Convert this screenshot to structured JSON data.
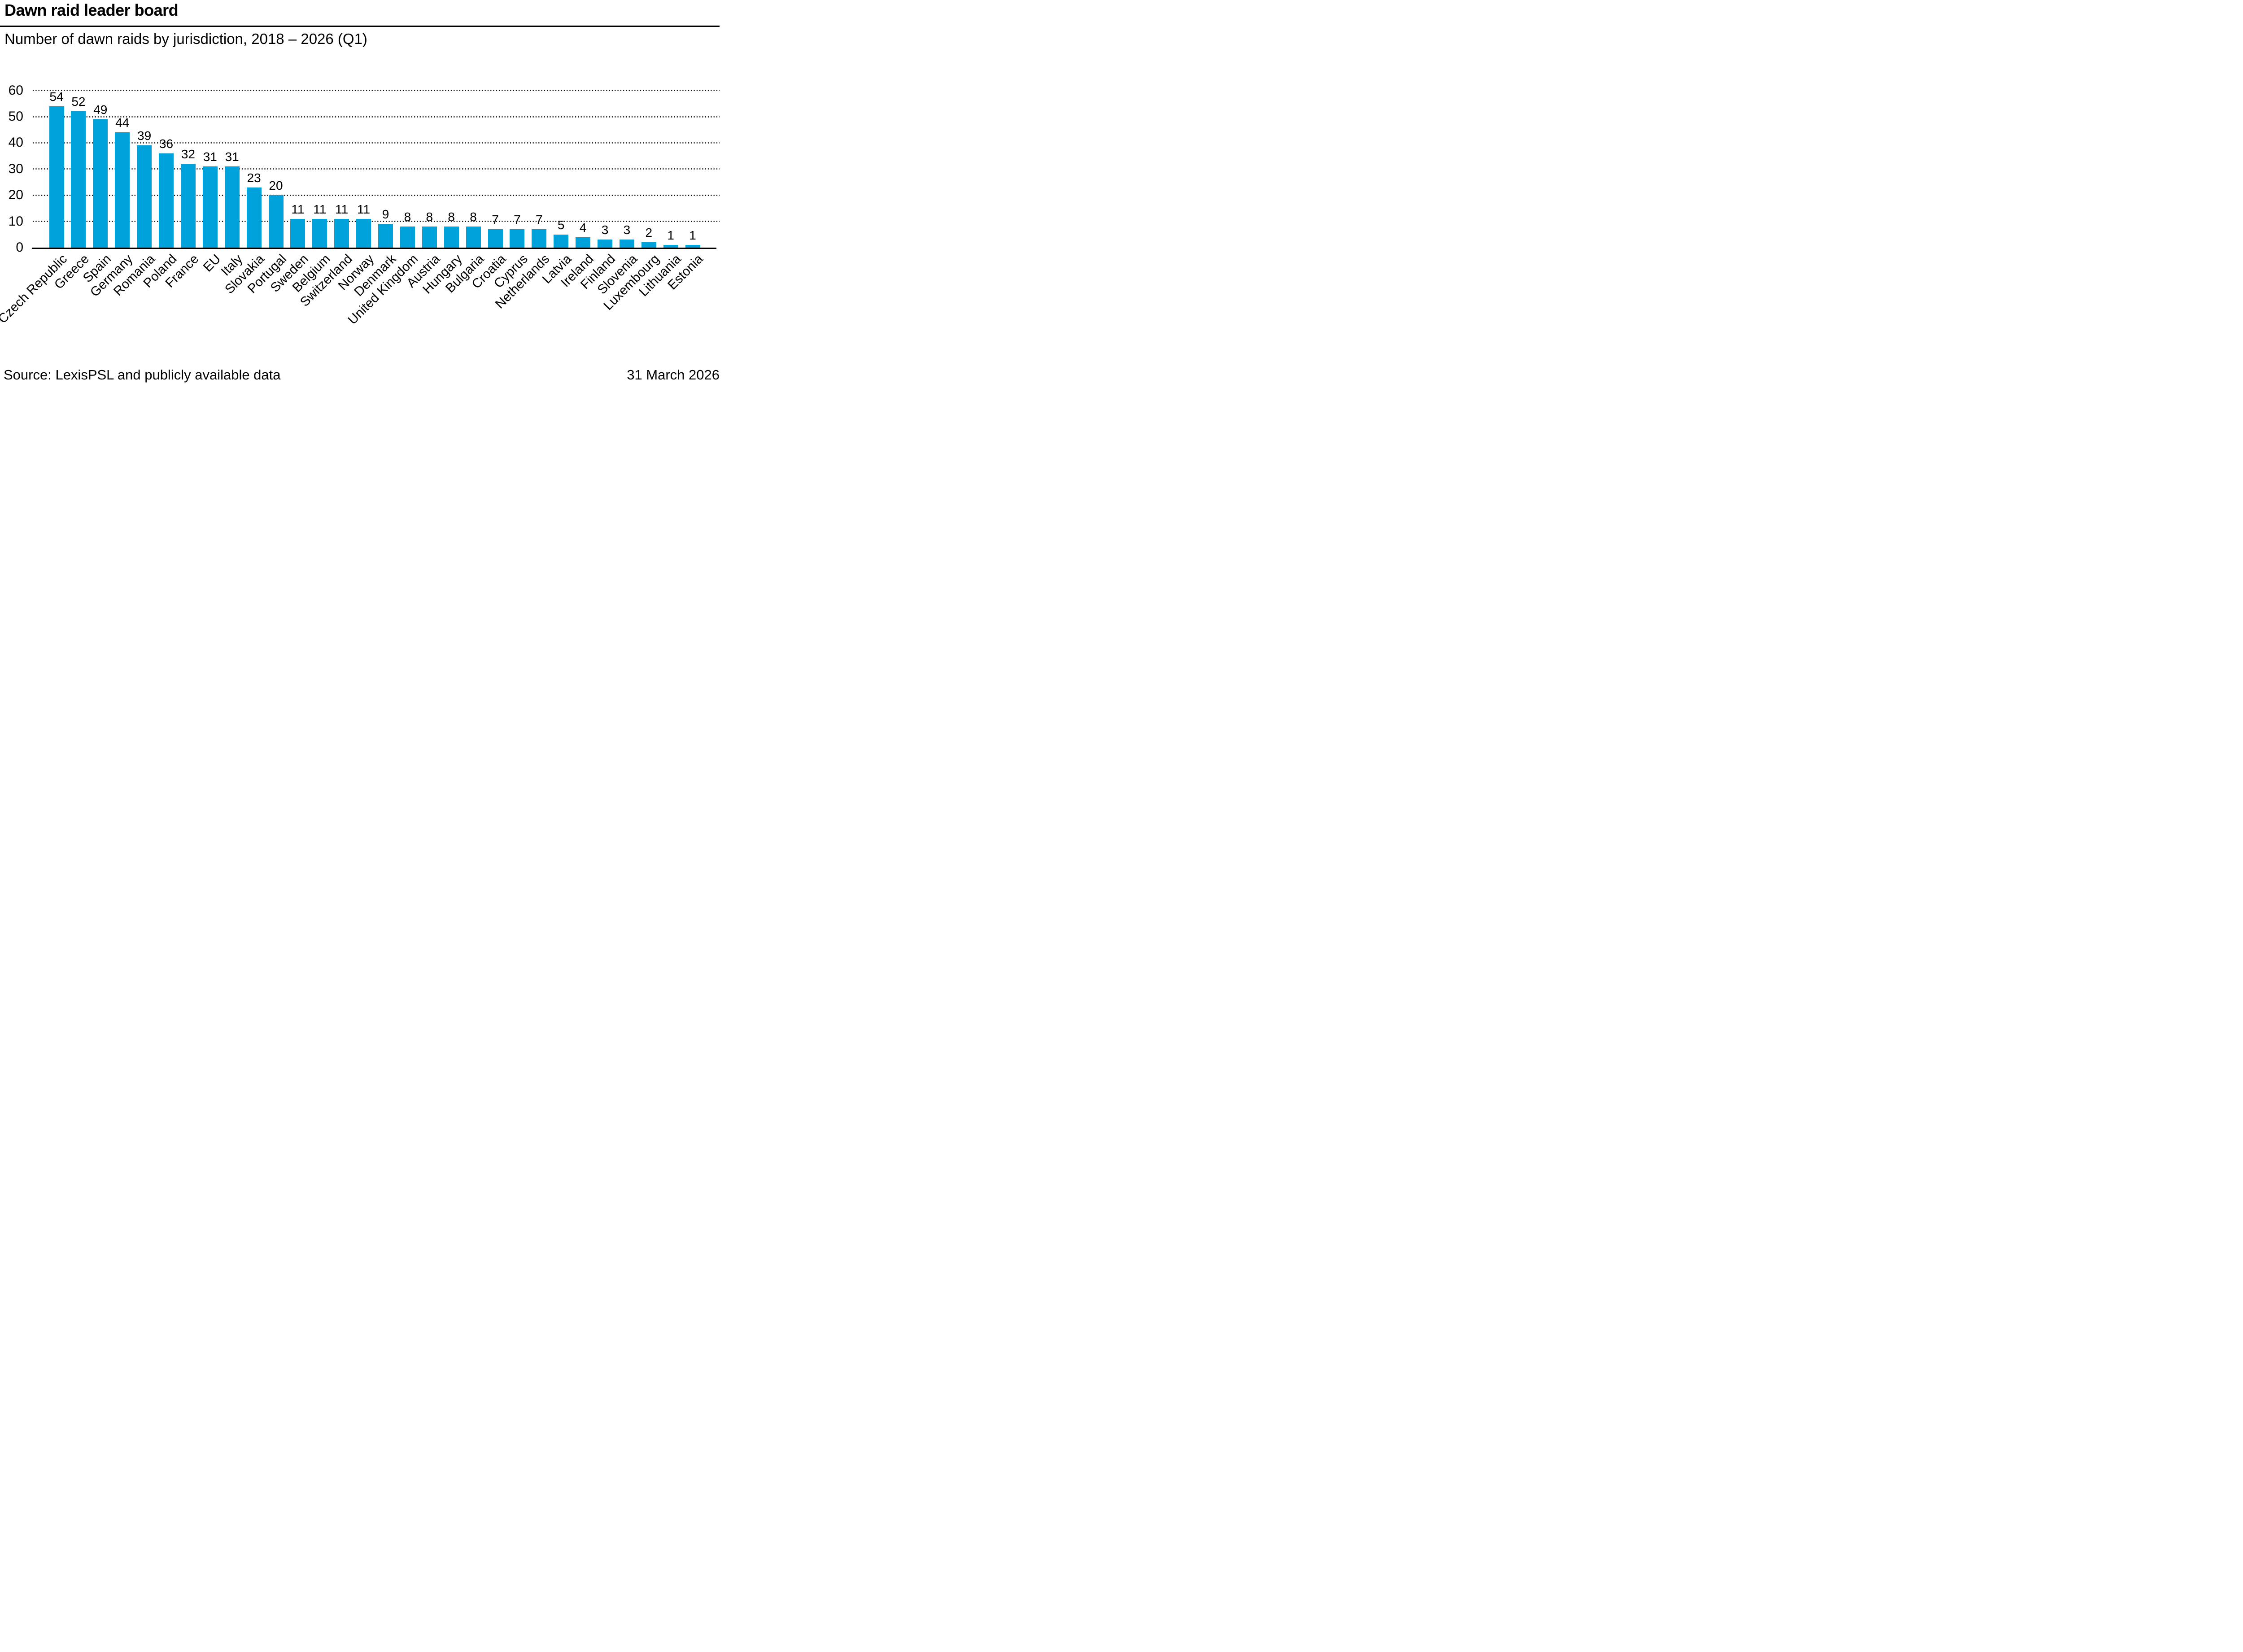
{
  "header": {
    "title": "Dawn raid leader board",
    "subtitle": "Number of dawn raids by jurisdiction, 2018 – 2026 (Q1)"
  },
  "footer": {
    "source": "Source: LexisPSL and publicly available data",
    "date": "31 March 2026"
  },
  "chart_data": {
    "type": "bar",
    "title": "Dawn raid leader board",
    "subtitle": "Number of dawn raids by jurisdiction, 2018 – 2026 (Q1)",
    "categories": [
      "Czech Republic",
      "Greece",
      "Spain",
      "Germany",
      "Romania",
      "Poland",
      "France",
      "EU",
      "Italy",
      "Slovakia",
      "Portugal",
      "Sweden",
      "Belgium",
      "Switzerland",
      "Norway",
      "Denmark",
      "United Kingdom",
      "Austria",
      "Hungary",
      "Bulgaria",
      "Croatia",
      "Cyprus",
      "Netherlands",
      "Latvia",
      "Ireland",
      "Finland",
      "Slovenia",
      "Luxembourg",
      "Lithuania",
      "Estonia"
    ],
    "values": [
      54,
      52,
      49,
      44,
      39,
      36,
      32,
      31,
      31,
      23,
      20,
      11,
      11,
      11,
      11,
      9,
      8,
      8,
      8,
      8,
      7,
      7,
      7,
      5,
      4,
      3,
      3,
      2,
      1,
      1
    ],
    "xlabel": "",
    "ylabel": "",
    "ylim": [
      0,
      60
    ],
    "yticks": [
      0,
      10,
      20,
      30,
      40,
      50,
      60
    ],
    "grid": "horizontal-dotted",
    "legend_position": "none",
    "value_labels": true,
    "bar_color": "#00A2DB",
    "axis_color": "#000000",
    "text_color": "#000000"
  }
}
